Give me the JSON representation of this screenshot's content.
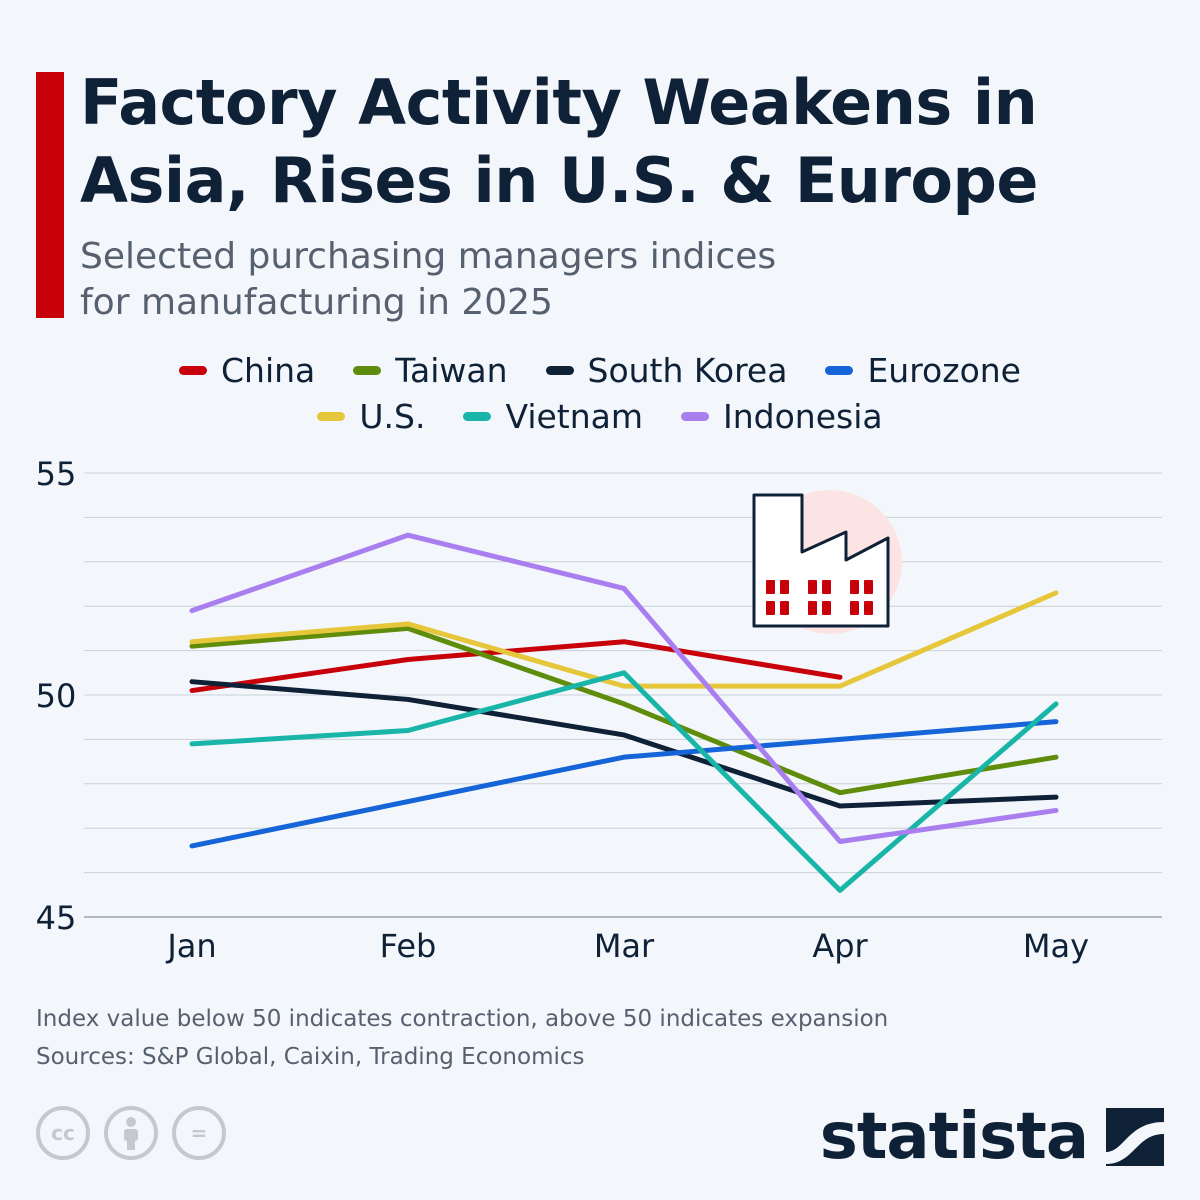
{
  "header": {
    "title": "Factory Activity Weakens in Asia, Rises in U.S. & Europe",
    "subtitle_line1": "Selected purchasing managers indices",
    "subtitle_line2": "for manufacturing in 2025"
  },
  "colors": {
    "accent": "#c8000a",
    "China": "#c8000a",
    "Taiwan": "#5f8c0a",
    "South Korea": "#0f2137",
    "Eurozone": "#1565d8",
    "U.S.": "#e6c63a",
    "Vietnam": "#18b5a8",
    "Indonesia": "#a97ff0"
  },
  "legend": {
    "row1": [
      "China",
      "Taiwan",
      "South Korea",
      "Eurozone"
    ],
    "row2": [
      "U.S.",
      "Vietnam",
      "Indonesia"
    ]
  },
  "chart_data": {
    "type": "line",
    "title": "Factory Activity Weakens in Asia, Rises in U.S. & Europe",
    "subtitle": "Selected purchasing managers indices for manufacturing in 2025",
    "categories": [
      "Jan",
      "Feb",
      "Mar",
      "Apr",
      "May"
    ],
    "ylim": [
      45,
      55
    ],
    "yticks": [
      45,
      50,
      55
    ],
    "grid": true,
    "xlabel": "",
    "ylabel": "",
    "legend_position": "top-center",
    "series": [
      {
        "name": "China",
        "values": [
          50.1,
          50.8,
          51.2,
          50.4,
          null
        ]
      },
      {
        "name": "Taiwan",
        "values": [
          51.1,
          51.5,
          49.8,
          47.8,
          48.6
        ]
      },
      {
        "name": "South Korea",
        "values": [
          50.3,
          49.9,
          49.1,
          47.5,
          47.7
        ]
      },
      {
        "name": "Eurozone",
        "values": [
          46.6,
          47.6,
          48.6,
          49.0,
          49.4
        ]
      },
      {
        "name": "U.S.",
        "values": [
          51.2,
          51.6,
          50.2,
          50.2,
          52.3
        ]
      },
      {
        "name": "Vietnam",
        "values": [
          48.9,
          49.2,
          50.5,
          45.6,
          49.8
        ]
      },
      {
        "name": "Indonesia",
        "values": [
          51.9,
          53.6,
          52.4,
          46.7,
          47.4
        ]
      }
    ]
  },
  "footer": {
    "note": "Index value below 50 indicates contraction, above 50 indicates expansion",
    "sources": "Sources: S&P Global, Caixin, Trading Economics",
    "license_icons": [
      "cc-icon",
      "attribution-icon",
      "no-derivatives-icon"
    ],
    "cc_label": "cc",
    "nd_label": "=",
    "logo_text": "statista"
  }
}
